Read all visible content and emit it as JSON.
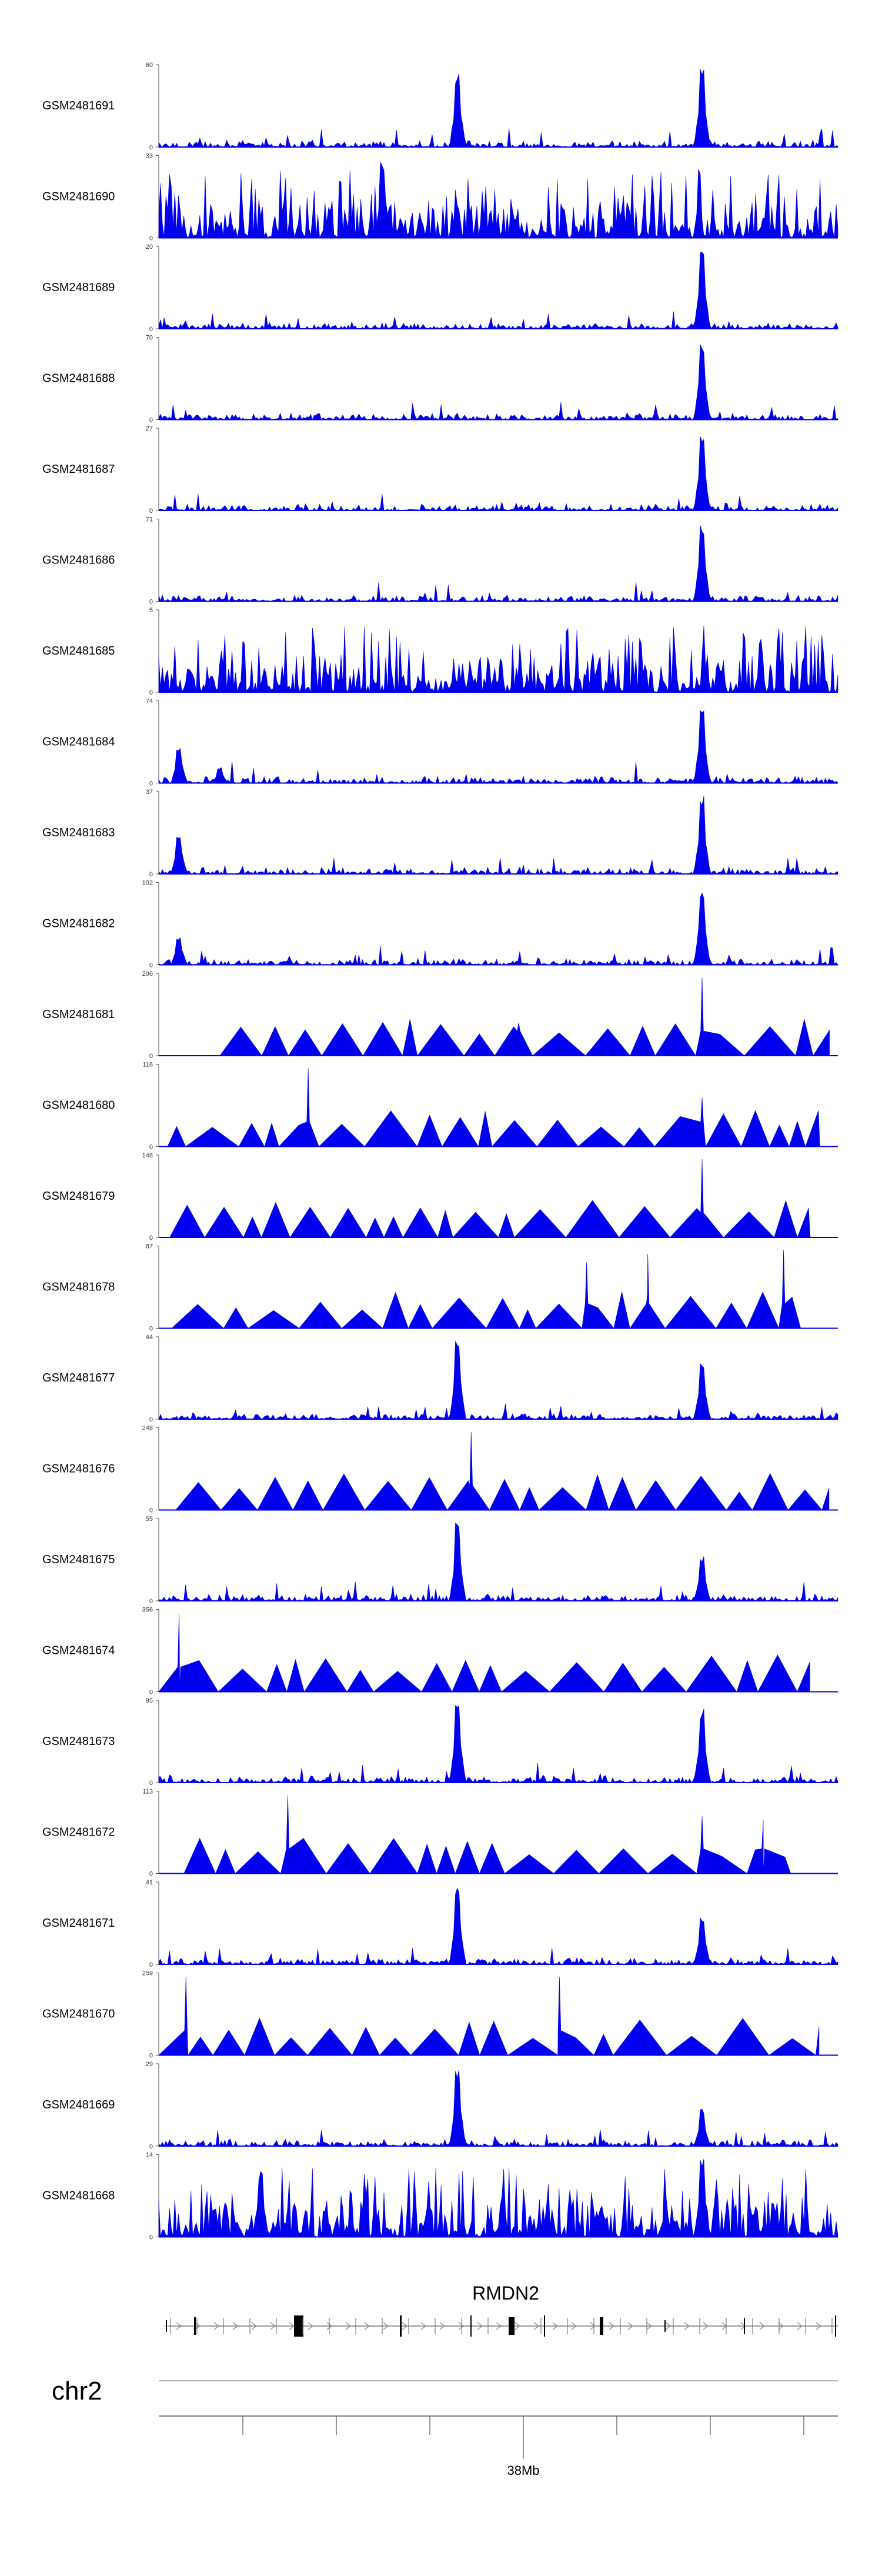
{
  "chart_data": {
    "type": "area",
    "title": "",
    "description_free": true,
    "region": {
      "chromosome": "chr2",
      "gene": "RMDN2",
      "tick_label": "38Mb"
    },
    "colors": {
      "signal": "#0000ee",
      "gene": "#000000",
      "axis": "#333333"
    },
    "tracks": [
      {
        "name": "GSM2481691",
        "max": 60,
        "min": 0,
        "style": "noisy",
        "peaks": [
          [
            0.44,
            0.9
          ],
          [
            0.8,
            0.95
          ]
        ]
      },
      {
        "name": "GSM2481690",
        "max": 33,
        "min": 0,
        "style": "dense",
        "peaks": [
          [
            0.33,
            0.95
          ]
        ]
      },
      {
        "name": "GSM2481689",
        "max": 20,
        "min": 0,
        "style": "noisy",
        "peaks": [
          [
            0.8,
            0.95
          ]
        ]
      },
      {
        "name": "GSM2481688",
        "max": 70,
        "min": 0,
        "style": "noisy",
        "peaks": [
          [
            0.8,
            0.95
          ]
        ]
      },
      {
        "name": "GSM2481687",
        "max": 27,
        "min": 0,
        "style": "noisy",
        "peaks": [
          [
            0.8,
            0.95
          ]
        ]
      },
      {
        "name": "GSM2481686",
        "max": 71,
        "min": 0,
        "style": "noisy",
        "peaks": [
          [
            0.8,
            0.95
          ]
        ]
      },
      {
        "name": "GSM2481685",
        "max": 5,
        "min": 0,
        "style": "dense",
        "peaks": []
      },
      {
        "name": "GSM2481684",
        "max": 74,
        "min": 0,
        "style": "noisy",
        "peaks": [
          [
            0.03,
            0.45
          ],
          [
            0.09,
            0.2
          ],
          [
            0.8,
            0.95
          ]
        ]
      },
      {
        "name": "GSM2481683",
        "max": 37,
        "min": 0,
        "style": "noisy",
        "peaks": [
          [
            0.03,
            0.5
          ],
          [
            0.8,
            0.95
          ]
        ]
      },
      {
        "name": "GSM2481682",
        "max": 102,
        "min": 0,
        "style": "noisy",
        "peaks": [
          [
            0.03,
            0.35
          ],
          [
            0.8,
            0.95
          ]
        ]
      },
      {
        "name": "GSM2481681",
        "max": 206,
        "min": 0,
        "style": "sparse",
        "peaks": [
          [
            0.53,
            0.4
          ],
          [
            0.8,
            0.95
          ]
        ]
      },
      {
        "name": "GSM2481680",
        "max": 116,
        "min": 0,
        "style": "sparse",
        "peaks": [
          [
            0.22,
            0.95
          ],
          [
            0.8,
            0.6
          ]
        ]
      },
      {
        "name": "GSM2481679",
        "max": 148,
        "min": 0,
        "style": "sparse",
        "peaks": [
          [
            0.8,
            0.95
          ]
        ]
      },
      {
        "name": "GSM2481678",
        "max": 87,
        "min": 0,
        "style": "sparse",
        "peaks": [
          [
            0.63,
            0.8
          ],
          [
            0.72,
            0.9
          ],
          [
            0.92,
            0.95
          ]
        ]
      },
      {
        "name": "GSM2481677",
        "max": 44,
        "min": 0,
        "style": "noisy",
        "peaks": [
          [
            0.44,
            0.95
          ],
          [
            0.8,
            0.7
          ]
        ]
      },
      {
        "name": "GSM2481676",
        "max": 248,
        "min": 0,
        "style": "sparse",
        "peaks": [
          [
            0.46,
            0.95
          ]
        ]
      },
      {
        "name": "GSM2481675",
        "max": 55,
        "min": 0,
        "style": "noisy",
        "peaks": [
          [
            0.44,
            0.95
          ],
          [
            0.8,
            0.55
          ]
        ]
      },
      {
        "name": "GSM2481674",
        "max": 356,
        "min": 0,
        "style": "sparse",
        "peaks": [
          [
            0.03,
            0.95
          ]
        ]
      },
      {
        "name": "GSM2481673",
        "max": 95,
        "min": 0,
        "style": "noisy",
        "peaks": [
          [
            0.44,
            0.95
          ],
          [
            0.8,
            0.9
          ]
        ]
      },
      {
        "name": "GSM2481672",
        "max": 113,
        "min": 0,
        "style": "sparse",
        "peaks": [
          [
            0.19,
            0.95
          ],
          [
            0.8,
            0.7
          ],
          [
            0.89,
            0.65
          ]
        ]
      },
      {
        "name": "GSM2481671",
        "max": 41,
        "min": 0,
        "style": "noisy",
        "peaks": [
          [
            0.44,
            0.95
          ],
          [
            0.8,
            0.6
          ]
        ]
      },
      {
        "name": "GSM2481670",
        "max": 259,
        "min": 0,
        "style": "sparse",
        "peaks": [
          [
            0.04,
            0.95
          ],
          [
            0.59,
            0.95
          ]
        ]
      },
      {
        "name": "GSM2481669",
        "max": 29,
        "min": 0,
        "style": "noisy",
        "peaks": [
          [
            0.44,
            0.95
          ],
          [
            0.8,
            0.45
          ]
        ]
      },
      {
        "name": "GSM2481668",
        "max": 14,
        "min": 0,
        "style": "dense",
        "peaks": [
          [
            0.15,
            0.8
          ],
          [
            0.8,
            0.95
          ]
        ]
      }
    ]
  }
}
